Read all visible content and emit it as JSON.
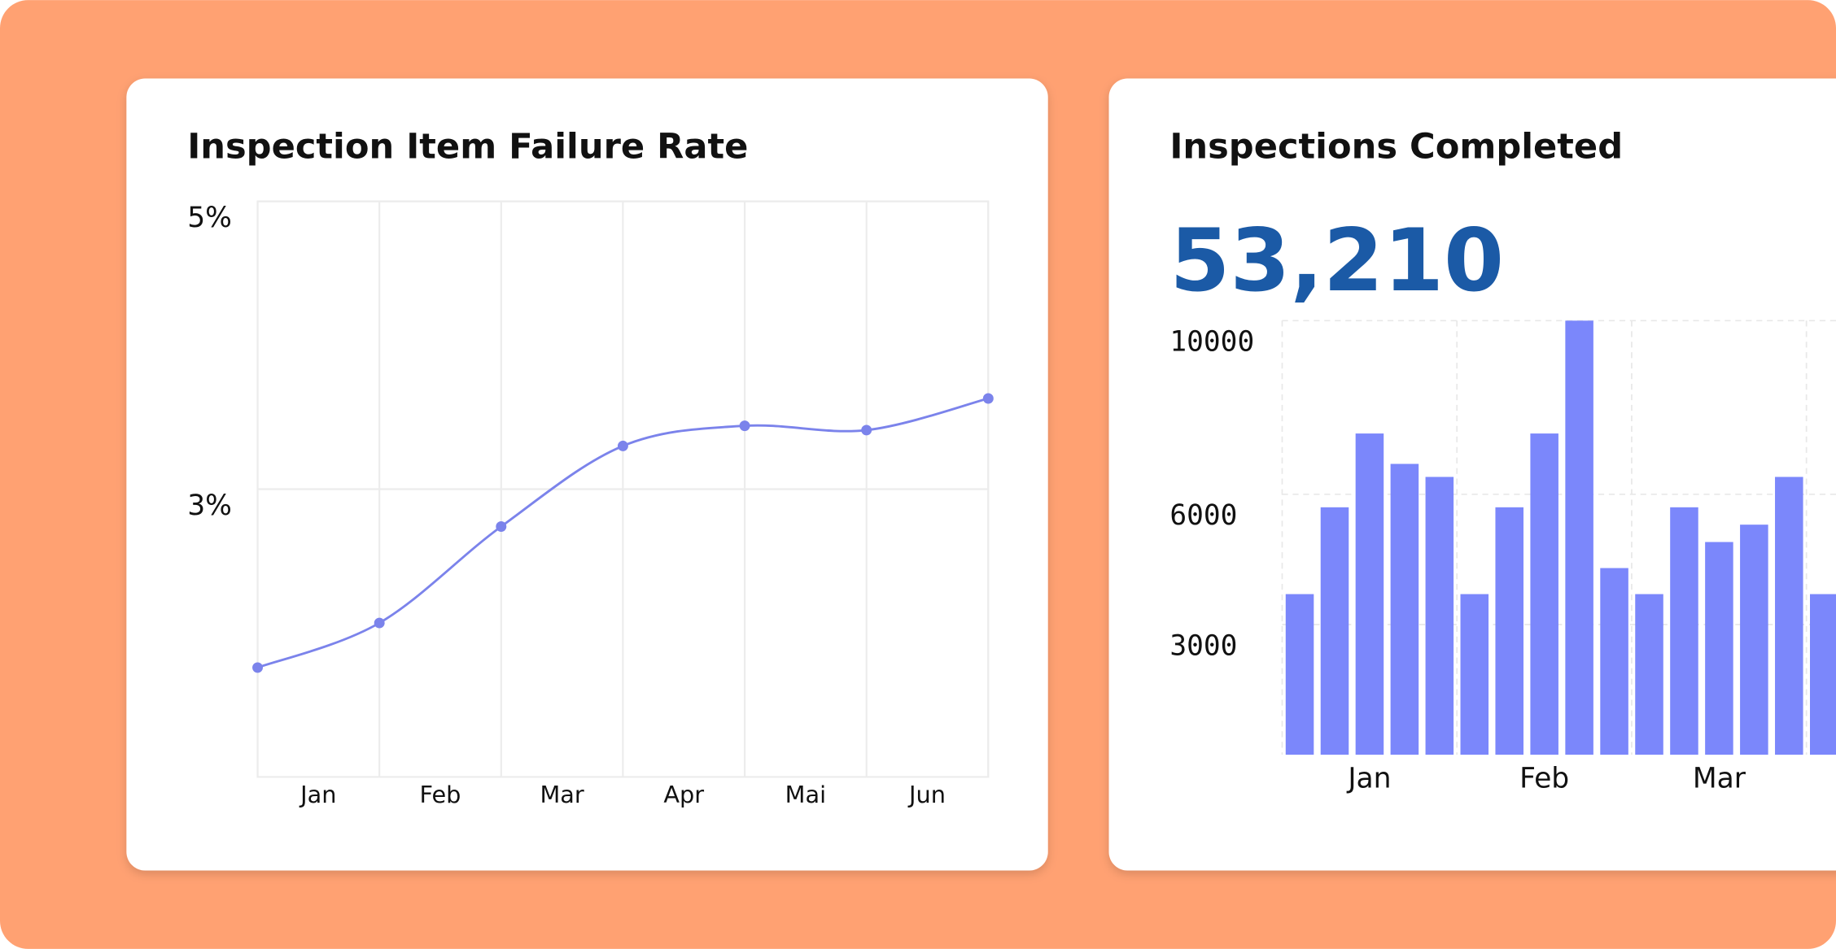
{
  "chart_data": [
    {
      "type": "line",
      "title": "Inspection Item Failure Rate",
      "x": [
        0,
        1,
        2,
        3,
        4,
        5,
        6
      ],
      "values": [
        1.76,
        2.07,
        2.74,
        3.3,
        3.44,
        3.41,
        3.63
      ],
      "color": "#7b83eb",
      "xlim": [
        0,
        6
      ],
      "xticks": [
        {
          "value": 0.5,
          "label": "Jan"
        },
        {
          "value": 1.5,
          "label": "Feb"
        },
        {
          "value": 2.5,
          "label": "Mar"
        },
        {
          "value": 3.5,
          "label": "Apr"
        },
        {
          "value": 4.5,
          "label": "Mai"
        },
        {
          "value": 5.5,
          "label": "Jun"
        }
      ],
      "ylim": [
        1,
        5
      ],
      "yticks": [
        {
          "value": 5,
          "label": "5%"
        },
        {
          "value": 3,
          "label": "3%"
        }
      ],
      "grid": true
    },
    {
      "type": "bar",
      "title": "Inspections Completed",
      "kpi": "53,210",
      "categories": [
        null,
        null,
        "Jan",
        null,
        null,
        null,
        null,
        "Feb",
        null,
        null,
        null,
        null,
        "Mar",
        null,
        null,
        null
      ],
      "values": [
        3700,
        5700,
        7400,
        6700,
        6400,
        3700,
        5700,
        7400,
        10000,
        4300,
        3700,
        5700,
        4900,
        5300,
        6400,
        3700
      ],
      "color": "#7b87fb",
      "ylim": [
        0,
        10000
      ],
      "yticks": [
        3000,
        6000,
        10000
      ],
      "grid": true
    }
  ]
}
